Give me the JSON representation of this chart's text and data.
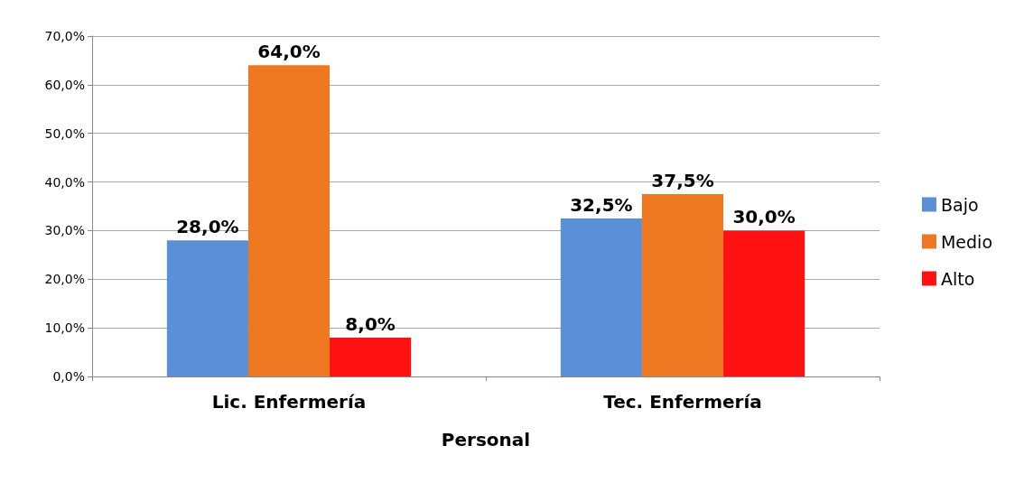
{
  "chart_data": {
    "type": "bar",
    "xlabel": "Personal",
    "categories": [
      "Lic. Enfermería",
      "Tec. Enfermería"
    ],
    "series": [
      {
        "name": "Bajo",
        "color": "#5b8fd6",
        "values": [
          28.0,
          32.5
        ],
        "value_labels": [
          "28,0%",
          "32,5%"
        ]
      },
      {
        "name": "Medio",
        "color": "#ee7722",
        "values": [
          64.0,
          37.5
        ],
        "value_labels": [
          "64,0%",
          "37,5%"
        ]
      },
      {
        "name": "Alto",
        "color": "#ff1111",
        "values": [
          8.0,
          30.0
        ],
        "value_labels": [
          "8,0%",
          "30,0%"
        ]
      }
    ],
    "ylim": [
      0,
      70
    ],
    "yticks": [
      {
        "value": 0,
        "label": "0,0%"
      },
      {
        "value": 10,
        "label": "10,0%"
      },
      {
        "value": 20,
        "label": "20,0%"
      },
      {
        "value": 30,
        "label": "30,0%"
      },
      {
        "value": 40,
        "label": "40,0%"
      },
      {
        "value": 50,
        "label": "50,0%"
      },
      {
        "value": 60,
        "label": "60,0%"
      },
      {
        "value": 70,
        "label": "70,0%"
      }
    ],
    "grid": "y",
    "legend": "right"
  }
}
